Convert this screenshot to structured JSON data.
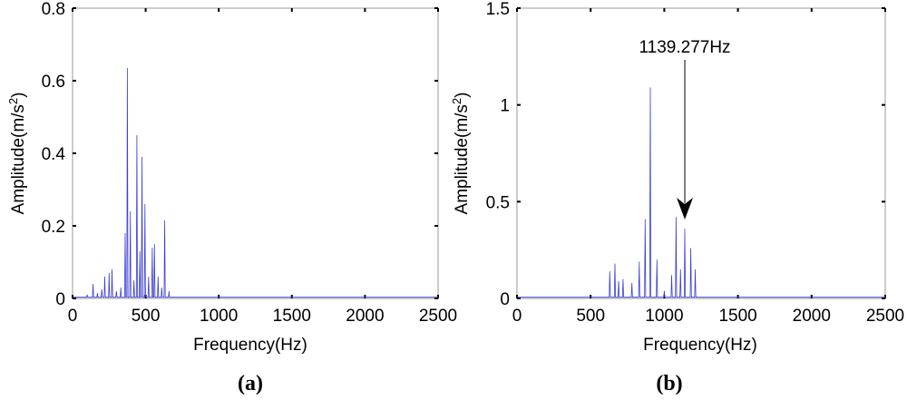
{
  "colors": {
    "series": "#3a3fd6",
    "axes": "#9a9a9a",
    "text": "#000000",
    "annotation": "#000000"
  },
  "chart_data": [
    {
      "type": "line",
      "panel_label": "(a)",
      "xlabel": "Frequency(Hz)",
      "ylabel": "Amplitude(m/s",
      "ylabel_sup": "2",
      "ylabel_end": ")",
      "xlim": [
        0,
        2500
      ],
      "ylim": [
        0,
        0.8
      ],
      "xticks": [
        0,
        500,
        1000,
        1500,
        2000,
        2500
      ],
      "yticks": [
        0,
        0.2,
        0.4,
        0.6,
        0.8
      ],
      "ytick_labels": [
        "0",
        "0.2",
        "0.4",
        "0.6",
        "0.8"
      ],
      "grid": false,
      "series": [
        {
          "peaks": [
            [
              100,
              0.01
            ],
            [
              140,
              0.04
            ],
            [
              170,
              0.015
            ],
            [
              200,
              0.025
            ],
            [
              220,
              0.06
            ],
            [
              250,
              0.07
            ],
            [
              270,
              0.08
            ],
            [
              300,
              0.02
            ],
            [
              330,
              0.03
            ],
            [
              360,
              0.18
            ],
            [
              375,
              0.635
            ],
            [
              395,
              0.24
            ],
            [
              420,
              0.05
            ],
            [
              440,
              0.45
            ],
            [
              460,
              0.13
            ],
            [
              475,
              0.39
            ],
            [
              495,
              0.26
            ],
            [
              520,
              0.06
            ],
            [
              545,
              0.14
            ],
            [
              560,
              0.15
            ],
            [
              585,
              0.06
            ],
            [
              610,
              0.03
            ],
            [
              630,
              0.215
            ],
            [
              660,
              0.02
            ]
          ]
        }
      ]
    },
    {
      "type": "line",
      "panel_label": "(b)",
      "xlabel": "Frequency(Hz)",
      "ylabel": "Amplitude(m/s",
      "ylabel_sup": "2",
      "ylabel_end": ")",
      "xlim": [
        0,
        2500
      ],
      "ylim": [
        0,
        1.5
      ],
      "xticks": [
        0,
        500,
        1000,
        1500,
        2000,
        2500
      ],
      "yticks": [
        0,
        0.5,
        1,
        1.5
      ],
      "ytick_labels": [
        "0",
        "0.5",
        "1",
        "1.5"
      ],
      "grid": false,
      "annotations": [
        {
          "text": "1139.277Hz",
          "x": 1139.277
        }
      ],
      "series": [
        {
          "peaks": [
            [
              630,
              0.14
            ],
            [
              665,
              0.18
            ],
            [
              690,
              0.09
            ],
            [
              720,
              0.1
            ],
            [
              780,
              0.08
            ],
            [
              830,
              0.19
            ],
            [
              870,
              0.41
            ],
            [
              905,
              1.09
            ],
            [
              950,
              0.2
            ],
            [
              1000,
              0.04
            ],
            [
              1050,
              0.12
            ],
            [
              1080,
              0.42
            ],
            [
              1110,
              0.15
            ],
            [
              1139.277,
              0.36
            ],
            [
              1180,
              0.26
            ],
            [
              1210,
              0.15
            ]
          ]
        }
      ]
    }
  ]
}
